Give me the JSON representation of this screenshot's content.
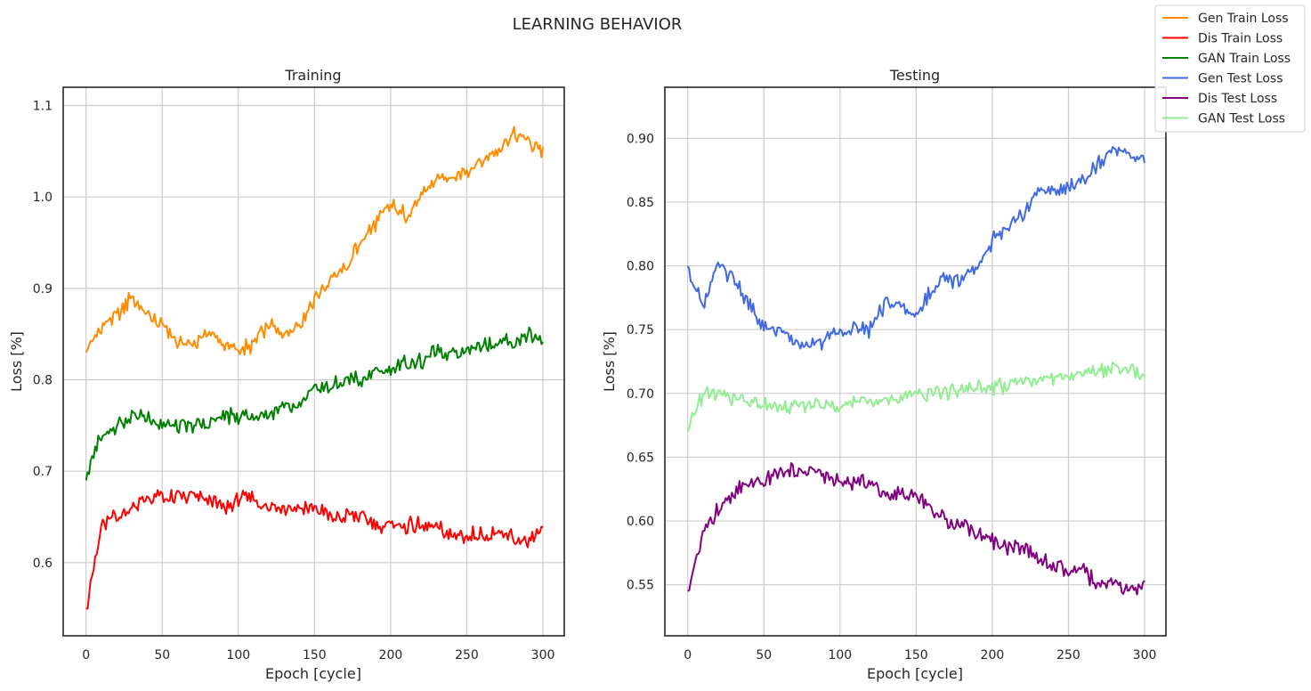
{
  "figure": {
    "suptitle": "LEARNING BEHAVIOR"
  },
  "legend": {
    "placement": "top-right",
    "entries": [
      {
        "label": "Gen Train Loss",
        "color": "#ff8c00"
      },
      {
        "label": "Dis Train Loss",
        "color": "#ff0000"
      },
      {
        "label": "GAN Train Loss",
        "color": "#008000"
      },
      {
        "label": "Gen Test Loss",
        "color": "#4169e1"
      },
      {
        "label": "Dis Test Loss",
        "color": "#800080"
      },
      {
        "label": "GAN Test Loss",
        "color": "#90ee90"
      }
    ]
  },
  "chart_data": [
    {
      "id": "training",
      "type": "line",
      "title": "Training",
      "xlabel": "Epoch [cycle]",
      "ylabel": "Loss [%]",
      "xlim": [
        -15,
        314
      ],
      "ylim": [
        0.52,
        1.12
      ],
      "xticks": [
        0,
        50,
        100,
        150,
        200,
        250,
        300
      ],
      "yticks": [
        0.6,
        0.7,
        0.8,
        0.9,
        1.0,
        1.1
      ],
      "ytick_labels": [
        "0.6",
        "0.7",
        "0.8",
        "0.9",
        "1.0",
        "1.1"
      ],
      "grid": true,
      "x_step": 10,
      "series": [
        {
          "name": "Gen Train Loss",
          "color": "#ff8c00",
          "values": [
            0.83,
            0.86,
            0.87,
            0.89,
            0.87,
            0.86,
            0.84,
            0.84,
            0.85,
            0.84,
            0.83,
            0.84,
            0.86,
            0.85,
            0.86,
            0.89,
            0.91,
            0.92,
            0.95,
            0.97,
            0.99,
            0.98,
            1.0,
            1.02,
            1.02,
            1.03,
            1.04,
            1.05,
            1.07,
            1.06,
            1.05
          ]
        },
        {
          "name": "Dis Train Loss",
          "color": "#ff0000",
          "values": [
            0.55,
            0.64,
            0.65,
            0.66,
            0.67,
            0.67,
            0.67,
            0.67,
            0.67,
            0.66,
            0.67,
            0.67,
            0.66,
            0.66,
            0.66,
            0.66,
            0.65,
            0.65,
            0.65,
            0.64,
            0.64,
            0.64,
            0.64,
            0.64,
            0.63,
            0.63,
            0.63,
            0.63,
            0.63,
            0.62,
            0.64
          ]
        },
        {
          "name": "GAN Train Loss",
          "color": "#008000",
          "values": [
            0.69,
            0.74,
            0.75,
            0.76,
            0.76,
            0.75,
            0.75,
            0.75,
            0.75,
            0.76,
            0.76,
            0.76,
            0.76,
            0.77,
            0.77,
            0.79,
            0.79,
            0.8,
            0.8,
            0.81,
            0.81,
            0.82,
            0.82,
            0.83,
            0.83,
            0.83,
            0.84,
            0.84,
            0.84,
            0.85,
            0.84
          ]
        }
      ]
    },
    {
      "id": "testing",
      "type": "line",
      "title": "Testing",
      "xlabel": "Epoch [cycle]",
      "ylabel": "Loss [%]",
      "xlim": [
        -15,
        314
      ],
      "ylim": [
        0.51,
        0.94
      ],
      "xticks": [
        0,
        50,
        100,
        150,
        200,
        250,
        300
      ],
      "yticks": [
        0.55,
        0.6,
        0.65,
        0.7,
        0.75,
        0.8,
        0.85,
        0.9
      ],
      "ytick_labels": [
        "0.55",
        "0.60",
        "0.65",
        "0.70",
        "0.75",
        "0.80",
        "0.85",
        "0.90"
      ],
      "grid": true,
      "x_step": 10,
      "series": [
        {
          "name": "Gen Test Loss",
          "color": "#4169e1",
          "values": [
            0.8,
            0.77,
            0.8,
            0.79,
            0.77,
            0.75,
            0.75,
            0.74,
            0.74,
            0.74,
            0.75,
            0.75,
            0.75,
            0.77,
            0.77,
            0.76,
            0.78,
            0.79,
            0.79,
            0.8,
            0.82,
            0.83,
            0.84,
            0.86,
            0.86,
            0.86,
            0.87,
            0.88,
            0.89,
            0.89,
            0.88
          ]
        },
        {
          "name": "Dis Test Loss",
          "color": "#800080",
          "values": [
            0.545,
            0.59,
            0.61,
            0.62,
            0.63,
            0.63,
            0.64,
            0.64,
            0.64,
            0.635,
            0.63,
            0.63,
            0.63,
            0.62,
            0.62,
            0.62,
            0.61,
            0.6,
            0.6,
            0.59,
            0.585,
            0.58,
            0.58,
            0.57,
            0.565,
            0.56,
            0.56,
            0.55,
            0.55,
            0.545,
            0.55
          ]
        },
        {
          "name": "GAN Test Loss",
          "color": "#90ee90",
          "values": [
            0.67,
            0.7,
            0.7,
            0.695,
            0.693,
            0.69,
            0.69,
            0.69,
            0.69,
            0.69,
            0.693,
            0.693,
            0.695,
            0.695,
            0.697,
            0.7,
            0.7,
            0.702,
            0.703,
            0.705,
            0.705,
            0.707,
            0.71,
            0.71,
            0.712,
            0.712,
            0.715,
            0.717,
            0.72,
            0.718,
            0.715
          ]
        }
      ]
    }
  ]
}
